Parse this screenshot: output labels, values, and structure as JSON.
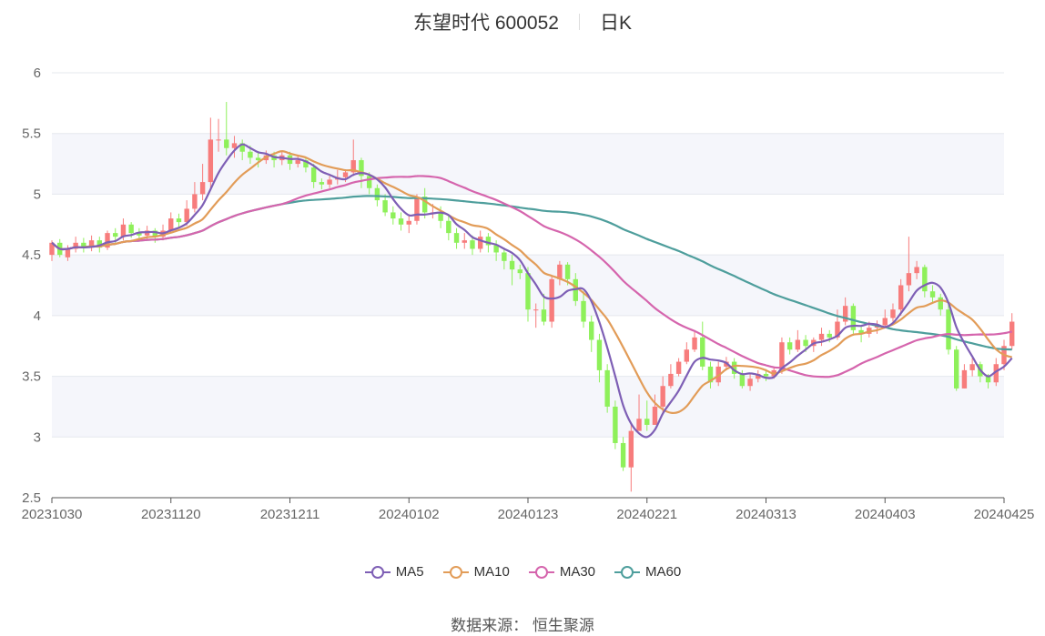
{
  "header": {
    "name_code": "东望时代 600052",
    "period": "日K"
  },
  "source_text": "数据来源： 恒生聚源",
  "colors": {
    "up": "#f77c7c",
    "down": "#8ef05a",
    "MA5": "#7e5fb5",
    "MA10": "#e29c58",
    "MA30": "#d565ad",
    "MA60": "#4e9e9c",
    "grid": "#e5e8ee",
    "band": "#f5f6fb",
    "axis": "#666666"
  },
  "chart_data": {
    "type": "candlestick",
    "y_ticks": [
      "6",
      "5.5",
      "5",
      "4.5",
      "4",
      "3.5",
      "3",
      "2.5"
    ],
    "ylim": [
      2.5,
      6
    ],
    "x_ticks": [
      "20231030",
      "20231120",
      "20231211",
      "20240102",
      "20240123",
      "20240221",
      "20240313",
      "20240403",
      "20240425"
    ],
    "x_tick_index": [
      0,
      15,
      30,
      45,
      60,
      75,
      90,
      105,
      120
    ],
    "count": 121,
    "candles": [
      [
        4.5,
        4.6,
        4.62,
        4.45
      ],
      [
        4.6,
        4.5,
        4.63,
        4.48
      ],
      [
        4.48,
        4.55,
        4.58,
        4.45
      ],
      [
        4.55,
        4.6,
        4.65,
        4.52
      ],
      [
        4.6,
        4.56,
        4.64,
        4.52
      ],
      [
        4.56,
        4.62,
        4.66,
        4.53
      ],
      [
        4.62,
        4.56,
        4.65,
        4.52
      ],
      [
        4.56,
        4.68,
        4.7,
        4.54
      ],
      [
        4.68,
        4.65,
        4.72,
        4.6
      ],
      [
        4.65,
        4.75,
        4.8,
        4.62
      ],
      [
        4.75,
        4.68,
        4.77,
        4.64
      ],
      [
        4.68,
        4.66,
        4.72,
        4.62
      ],
      [
        4.66,
        4.7,
        4.74,
        4.63
      ],
      [
        4.7,
        4.65,
        4.72,
        4.6
      ],
      [
        4.65,
        4.7,
        4.75,
        4.62
      ],
      [
        4.7,
        4.8,
        4.85,
        4.68
      ],
      [
        4.8,
        4.77,
        4.84,
        4.72
      ],
      [
        4.77,
        4.88,
        4.95,
        4.74
      ],
      [
        4.88,
        5.0,
        5.1,
        4.85
      ],
      [
        5.0,
        5.1,
        5.25,
        4.95
      ],
      [
        5.1,
        5.45,
        5.63,
        5.05
      ],
      [
        5.45,
        5.45,
        5.62,
        5.35
      ],
      [
        5.45,
        5.38,
        5.76,
        5.32
      ],
      [
        5.38,
        5.42,
        5.48,
        5.3
      ],
      [
        5.42,
        5.35,
        5.45,
        5.28
      ],
      [
        5.35,
        5.3,
        5.4,
        5.25
      ],
      [
        5.3,
        5.28,
        5.35,
        5.22
      ],
      [
        5.28,
        5.32,
        5.36,
        5.25
      ],
      [
        5.32,
        5.28,
        5.35,
        5.22
      ],
      [
        5.28,
        5.32,
        5.36,
        5.24
      ],
      [
        5.32,
        5.25,
        5.35,
        5.2
      ],
      [
        5.25,
        5.28,
        5.32,
        5.22
      ],
      [
        5.28,
        5.22,
        5.3,
        5.18
      ],
      [
        5.22,
        5.1,
        5.25,
        5.05
      ],
      [
        5.1,
        5.08,
        5.13,
        5.04
      ],
      [
        5.08,
        5.12,
        5.15,
        5.05
      ],
      [
        5.12,
        5.14,
        5.2,
        5.08
      ],
      [
        5.14,
        5.18,
        5.2,
        5.1
      ],
      [
        5.18,
        5.28,
        5.45,
        5.15
      ],
      [
        5.28,
        5.15,
        5.3,
        5.05
      ],
      [
        5.15,
        5.05,
        5.18,
        5.0
      ],
      [
        5.05,
        4.95,
        5.08,
        4.9
      ],
      [
        4.95,
        4.85,
        5.0,
        4.82
      ],
      [
        4.85,
        4.8,
        4.9,
        4.75
      ],
      [
        4.8,
        4.75,
        4.85,
        4.7
      ],
      [
        4.75,
        4.78,
        4.82,
        4.68
      ],
      [
        4.78,
        4.98,
        5.0,
        4.75
      ],
      [
        4.98,
        4.85,
        5.05,
        4.8
      ],
      [
        4.85,
        4.85,
        4.92,
        4.8
      ],
      [
        4.85,
        4.78,
        4.9,
        4.72
      ],
      [
        4.78,
        4.68,
        4.82,
        4.62
      ],
      [
        4.68,
        4.6,
        4.72,
        4.55
      ],
      [
        4.6,
        4.62,
        4.68,
        4.55
      ],
      [
        4.62,
        4.55,
        4.66,
        4.5
      ],
      [
        4.55,
        4.65,
        4.7,
        4.52
      ],
      [
        4.65,
        4.58,
        4.68,
        4.52
      ],
      [
        4.58,
        4.52,
        4.62,
        4.45
      ],
      [
        4.52,
        4.45,
        4.56,
        4.38
      ],
      [
        4.45,
        4.38,
        4.5,
        4.25
      ],
      [
        4.38,
        4.35,
        4.42,
        4.3
      ],
      [
        4.35,
        4.05,
        4.4,
        3.95
      ],
      [
        4.05,
        4.05,
        4.1,
        3.9
      ],
      [
        4.05,
        3.95,
        4.18,
        3.92
      ],
      [
        3.95,
        4.3,
        4.33,
        3.9
      ],
      [
        4.3,
        4.42,
        4.45,
        4.25
      ],
      [
        4.42,
        4.3,
        4.44,
        4.25
      ],
      [
        4.3,
        4.12,
        4.35,
        4.08
      ],
      [
        4.12,
        3.95,
        4.2,
        3.9
      ],
      [
        3.95,
        3.8,
        4.0,
        3.7
      ],
      [
        3.8,
        3.55,
        3.85,
        3.45
      ],
      [
        3.55,
        3.25,
        3.6,
        3.2
      ],
      [
        3.25,
        2.95,
        3.3,
        2.9
      ],
      [
        2.95,
        2.75,
        3.0,
        2.72
      ],
      [
        2.75,
        3.05,
        3.1,
        2.55
      ],
      [
        3.05,
        3.15,
        3.35,
        3.05
      ],
      [
        3.15,
        3.1,
        3.3,
        3.05
      ],
      [
        3.1,
        3.25,
        3.35,
        3.1
      ],
      [
        3.25,
        3.42,
        3.5,
        3.2
      ],
      [
        3.42,
        3.52,
        3.6,
        3.4
      ],
      [
        3.52,
        3.62,
        3.65,
        3.5
      ],
      [
        3.62,
        3.72,
        3.78,
        3.6
      ],
      [
        3.72,
        3.82,
        3.88,
        3.7
      ],
      [
        3.82,
        3.58,
        3.95,
        3.55
      ],
      [
        3.58,
        3.45,
        3.62,
        3.4
      ],
      [
        3.45,
        3.58,
        3.62,
        3.42
      ],
      [
        3.58,
        3.62,
        3.66,
        3.55
      ],
      [
        3.62,
        3.52,
        3.65,
        3.48
      ],
      [
        3.52,
        3.42,
        3.55,
        3.4
      ],
      [
        3.42,
        3.48,
        3.52,
        3.38
      ],
      [
        3.48,
        3.52,
        3.55,
        3.45
      ],
      [
        3.52,
        3.5,
        3.56,
        3.46
      ],
      [
        3.5,
        3.55,
        3.58,
        3.48
      ],
      [
        3.55,
        3.78,
        3.82,
        3.52
      ],
      [
        3.78,
        3.72,
        3.82,
        3.68
      ],
      [
        3.72,
        3.8,
        3.88,
        3.7
      ],
      [
        3.8,
        3.75,
        3.84,
        3.7
      ],
      [
        3.75,
        3.8,
        3.82,
        3.7
      ],
      [
        3.8,
        3.85,
        3.9,
        3.75
      ],
      [
        3.85,
        3.82,
        3.88,
        3.78
      ],
      [
        3.82,
        3.95,
        4.05,
        3.8
      ],
      [
        3.95,
        4.08,
        4.15,
        3.92
      ],
      [
        4.08,
        3.88,
        4.1,
        3.85
      ],
      [
        3.88,
        3.85,
        3.92,
        3.78
      ],
      [
        3.85,
        3.9,
        3.95,
        3.82
      ],
      [
        3.9,
        3.92,
        3.96,
        3.85
      ],
      [
        3.92,
        3.98,
        4.05,
        3.9
      ],
      [
        3.98,
        4.05,
        4.1,
        3.95
      ],
      [
        4.05,
        4.25,
        4.3,
        4.0
      ],
      [
        4.25,
        4.35,
        4.65,
        4.2
      ],
      [
        4.35,
        4.4,
        4.45,
        4.3
      ],
      [
        4.4,
        4.2,
        4.42,
        4.15
      ],
      [
        4.2,
        4.15,
        4.25,
        4.1
      ],
      [
        4.15,
        4.05,
        4.18,
        4.0
      ],
      [
        4.05,
        3.72,
        4.1,
        3.68
      ],
      [
        3.72,
        3.4,
        3.75,
        3.38
      ],
      [
        3.4,
        3.55,
        3.6,
        3.4
      ],
      [
        3.55,
        3.6,
        3.65,
        3.5
      ],
      [
        3.6,
        3.5,
        3.62,
        3.45
      ],
      [
        3.5,
        3.45,
        3.52,
        3.4
      ],
      [
        3.45,
        3.6,
        3.65,
        3.42
      ],
      [
        3.6,
        3.75,
        3.8,
        3.55
      ],
      [
        3.75,
        3.95,
        4.02,
        3.72
      ]
    ]
  },
  "legend": [
    {
      "label": "MA5",
      "period": 5
    },
    {
      "label": "MA10",
      "period": 10
    },
    {
      "label": "MA30",
      "period": 30
    },
    {
      "label": "MA60",
      "period": 60
    }
  ]
}
